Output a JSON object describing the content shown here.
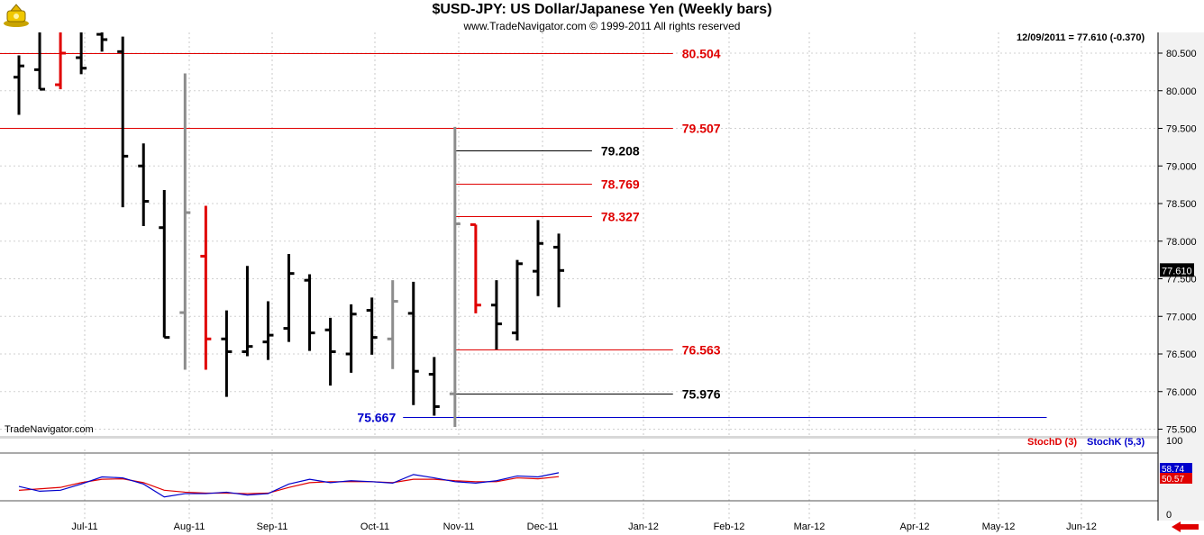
{
  "header": {
    "title": "$USD-JPY:  US Dollar/Japanese Yen  (Weekly bars)",
    "subtitle": "www.TradeNavigator.com © 1999-2011 All rights reserved",
    "readout": "12/09/2011 = 77.610 (-0.370)",
    "watermark": "TradeNavigator.com"
  },
  "indicator": {
    "stoch_d_label": "StochD (3)",
    "stoch_k_label": "StochK (5,3)",
    "axis_top": "100",
    "axis_bottom": "0",
    "stoch_k_last": "58.74",
    "stoch_d_last": "50.57"
  },
  "colors": {
    "up_bar": "#000000",
    "red_bar": "#e00000",
    "gray_bar": "#8c8c8c",
    "level_red": "#e00000",
    "level_black": "#000000",
    "level_blue": "#0000cc",
    "stoch_k": "#0000cc",
    "stoch_d": "#e00000",
    "axis_bg": "#f0f0f0"
  },
  "chart_data": {
    "type": "ohlc",
    "y_range": [
      75.45,
      80.72
    ],
    "y_ticks": [
      75.5,
      76.0,
      76.5,
      77.0,
      77.5,
      78.0,
      78.5,
      79.0,
      79.5,
      80.0,
      80.5
    ],
    "y_tick_labels": [
      "75.500",
      "76.000",
      "76.500",
      "77.000",
      "77.500",
      "78.000",
      "78.500",
      "79.000",
      "79.500",
      "80.000",
      "80.500"
    ],
    "x_tick_labels": [
      "Jul-11",
      "Aug-11",
      "Sep-11",
      "Oct-11",
      "Nov-11",
      "Dec-11",
      "Jan-12",
      "Feb-12",
      "Mar-12",
      "Apr-12",
      "May-12",
      "Jun-12"
    ],
    "last_price": "77.610",
    "bars": [
      {
        "o": 80.18,
        "h": 80.47,
        "l": 79.68,
        "c": 80.33,
        "color": "black"
      },
      {
        "o": 80.28,
        "h": 80.9,
        "l": 80.02,
        "c": 80.02,
        "color": "black"
      },
      {
        "o": 80.08,
        "h": 80.9,
        "l": 80.02,
        "c": 80.5,
        "color": "red"
      },
      {
        "o": 80.44,
        "h": 80.9,
        "l": 80.22,
        "c": 80.3,
        "color": "black"
      },
      {
        "o": 80.75,
        "h": 80.9,
        "l": 80.52,
        "c": 80.68,
        "color": "black"
      },
      {
        "o": 80.52,
        "h": 80.72,
        "l": 78.45,
        "c": 79.13,
        "color": "black"
      },
      {
        "o": 79.0,
        "h": 79.3,
        "l": 78.2,
        "c": 78.53,
        "color": "black"
      },
      {
        "o": 78.18,
        "h": 78.68,
        "l": 76.72,
        "c": 76.72,
        "color": "black"
      },
      {
        "o": 77.05,
        "h": 80.23,
        "l": 76.29,
        "c": 78.38,
        "color": "gray"
      },
      {
        "o": 77.8,
        "h": 78.47,
        "l": 76.29,
        "c": 76.7,
        "color": "red"
      },
      {
        "o": 76.7,
        "h": 77.08,
        "l": 75.93,
        "c": 76.53,
        "color": "black"
      },
      {
        "o": 76.53,
        "h": 77.67,
        "l": 76.47,
        "c": 76.6,
        "color": "black"
      },
      {
        "o": 76.66,
        "h": 77.2,
        "l": 76.42,
        "c": 76.75,
        "color": "black"
      },
      {
        "o": 76.84,
        "h": 77.83,
        "l": 76.66,
        "c": 77.57,
        "color": "black"
      },
      {
        "o": 77.48,
        "h": 77.56,
        "l": 76.54,
        "c": 76.78,
        "color": "black"
      },
      {
        "o": 76.82,
        "h": 76.98,
        "l": 76.08,
        "c": 76.53,
        "color": "black"
      },
      {
        "o": 76.5,
        "h": 77.16,
        "l": 76.25,
        "c": 77.03,
        "color": "black"
      },
      {
        "o": 77.08,
        "h": 77.25,
        "l": 76.49,
        "c": 76.72,
        "color": "black"
      },
      {
        "o": 76.7,
        "h": 77.48,
        "l": 76.3,
        "c": 77.2,
        "color": "gray"
      },
      {
        "o": 77.04,
        "h": 77.46,
        "l": 75.82,
        "c": 76.27,
        "color": "black"
      },
      {
        "o": 76.23,
        "h": 76.46,
        "l": 75.68,
        "c": 75.8,
        "color": "black"
      },
      {
        "o": 75.97,
        "h": 79.52,
        "l": 75.53,
        "c": 78.23,
        "color": "gray"
      },
      {
        "o": 78.22,
        "h": 78.22,
        "l": 77.04,
        "c": 77.15,
        "color": "red"
      },
      {
        "o": 77.15,
        "h": 77.48,
        "l": 76.56,
        "c": 76.9,
        "color": "black"
      },
      {
        "o": 76.78,
        "h": 77.75,
        "l": 76.68,
        "c": 77.7,
        "color": "black"
      },
      {
        "o": 77.6,
        "h": 78.28,
        "l": 77.27,
        "c": 77.97,
        "color": "black"
      },
      {
        "o": 77.92,
        "h": 78.1,
        "l": 77.12,
        "c": 77.61,
        "color": "black"
      }
    ],
    "levels": [
      {
        "value": 80.504,
        "label": "80.504",
        "color": "red",
        "x_start_bar": -1,
        "x_end_bar": 31.5,
        "label_side": "right"
      },
      {
        "value": 79.507,
        "label": "79.507",
        "color": "red",
        "x_start_bar": -1,
        "x_end_bar": 31.5,
        "label_side": "right"
      },
      {
        "value": 79.208,
        "label": "79.208",
        "color": "black",
        "x_start_bar": 21,
        "x_end_bar": 27.6,
        "label_side": "right"
      },
      {
        "value": 78.769,
        "label": "78.769",
        "color": "red",
        "x_start_bar": 21,
        "x_end_bar": 27.6,
        "label_side": "right"
      },
      {
        "value": 78.327,
        "label": "78.327",
        "color": "red",
        "x_start_bar": 21,
        "x_end_bar": 27.6,
        "label_side": "right"
      },
      {
        "value": 76.563,
        "label": "76.563",
        "color": "red",
        "x_start_bar": 21,
        "x_end_bar": 31.5,
        "label_side": "right"
      },
      {
        "value": 75.976,
        "label": "75.976",
        "color": "black",
        "x_start_bar": 21,
        "x_end_bar": 31.5,
        "label_side": "right"
      },
      {
        "value": 75.667,
        "label": "75.667",
        "color": "blue",
        "x_start_bar": 18.5,
        "x_end_bar": 49.5,
        "label_side": "left"
      }
    ],
    "stochastic": {
      "y_range": [
        0,
        100
      ],
      "k": [
        30,
        20,
        22,
        35,
        50,
        48,
        35,
        8,
        15,
        15,
        18,
        12,
        15,
        35,
        45,
        38,
        42,
        40,
        37,
        55,
        48,
        40,
        37,
        42,
        52,
        50,
        58.74
      ],
      "d": [
        22,
        25,
        28,
        38,
        45,
        46,
        38,
        22,
        18,
        16,
        16,
        15,
        16,
        28,
        38,
        40,
        40,
        40,
        38,
        45,
        45,
        42,
        40,
        40,
        48,
        46,
        50.57
      ]
    }
  }
}
